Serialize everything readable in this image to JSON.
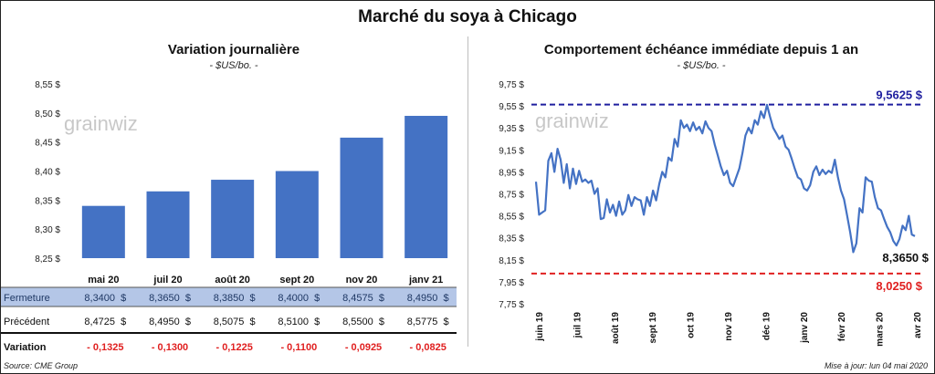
{
  "main_title": "Marché du soya à Chicago",
  "left": {
    "title": "Variation journalière",
    "unit": "- $US/bo. -",
    "watermark": "grainwiz",
    "row_labels": [
      "Fermeture",
      "Précédent",
      "Variation"
    ]
  },
  "right": {
    "title": "Comportement échéance immédiate depuis 1 an",
    "unit": "- $US/bo. -",
    "watermark": "grainwiz",
    "high_label": "9,5625 $",
    "last_label": "8,3650 $",
    "low_label": "8,0250 $"
  },
  "footer": {
    "source": "Source: CME Group",
    "updated": "Mise à jour: lun 04 mai 2020"
  },
  "colors": {
    "bar": "#4472C4",
    "line": "#4472C4",
    "high": "#1F1F9F",
    "low": "#E02020",
    "negative": "#E02020",
    "row_highlight": "#B4C6E7"
  },
  "chart_data": [
    {
      "type": "bar",
      "categories": [
        "mai 20",
        "juil 20",
        "août 20",
        "sept 20",
        "nov 20",
        "janv 21"
      ],
      "values": [
        8.34,
        8.365,
        8.385,
        8.4,
        8.4575,
        8.495
      ],
      "previous": [
        8.4725,
        8.495,
        8.5075,
        8.51,
        8.55,
        8.5775
      ],
      "change": [
        -0.1325,
        -0.13,
        -0.1225,
        -0.11,
        -0.0925,
        -0.0825
      ],
      "display": {
        "fermeture": [
          "8,3400  $",
          "8,3650  $",
          "8,3850  $",
          "8,4000  $",
          "8,4575  $",
          "8,4950  $"
        ],
        "precedent": [
          "8,4725  $",
          "8,4950  $",
          "8,5075  $",
          "8,5100  $",
          "8,5500  $",
          "8,5775  $"
        ],
        "variation": [
          "- 0,1325",
          "- 0,1300",
          "- 0,1225",
          "- 0,1100",
          "- 0,0925",
          "- 0,0825"
        ]
      },
      "ylim": [
        8.25,
        8.55
      ],
      "yticks": [
        8.25,
        8.3,
        8.35,
        8.4,
        8.45,
        8.5,
        8.55
      ],
      "ytick_labels": [
        "8,25 $",
        "8,30 $",
        "8,35 $",
        "8,40 $",
        "8,45 $",
        "8,50 $",
        "8,55 $"
      ],
      "grid": false
    },
    {
      "type": "line",
      "x_labels": [
        "juin 19",
        "juil 19",
        "août 19",
        "sept 19",
        "oct 19",
        "nov 19",
        "déc 19",
        "janv 20",
        "févr 20",
        "mars 20",
        "avr 20"
      ],
      "values": [
        8.86,
        8.56,
        8.58,
        8.6,
        9.05,
        9.12,
        8.95,
        9.16,
        9.06,
        8.85,
        9.02,
        8.8,
        8.98,
        8.84,
        8.96,
        8.86,
        8.88,
        8.85,
        8.87,
        8.75,
        8.8,
        8.52,
        8.53,
        8.7,
        8.58,
        8.65,
        8.55,
        8.68,
        8.56,
        8.6,
        8.74,
        8.64,
        8.72,
        8.7,
        8.69,
        8.56,
        8.72,
        8.64,
        8.78,
        8.69,
        8.84,
        8.95,
        8.9,
        9.08,
        9.05,
        9.25,
        9.18,
        9.42,
        9.35,
        9.38,
        9.32,
        9.4,
        9.33,
        9.36,
        9.3,
        9.41,
        9.35,
        9.32,
        9.2,
        9.1,
        9.0,
        8.92,
        8.96,
        8.85,
        8.82,
        8.9,
        8.98,
        9.12,
        9.28,
        9.35,
        9.3,
        9.42,
        9.38,
        9.5,
        9.44,
        9.56,
        9.45,
        9.35,
        9.3,
        9.25,
        9.28,
        9.18,
        9.15,
        9.07,
        8.98,
        8.9,
        8.88,
        8.8,
        8.78,
        8.83,
        8.95,
        9.0,
        8.92,
        8.97,
        8.93,
        8.96,
        8.94,
        9.06,
        8.9,
        8.78,
        8.7,
        8.55,
        8.4,
        8.22,
        8.3,
        8.62,
        8.58,
        8.9,
        8.87,
        8.86,
        8.72,
        8.62,
        8.6,
        8.52,
        8.45,
        8.4,
        8.32,
        8.28,
        8.34,
        8.46,
        8.42,
        8.55,
        8.38,
        8.365
      ],
      "ylim": [
        7.75,
        9.75
      ],
      "yticks": [
        7.75,
        7.95,
        8.15,
        8.35,
        8.55,
        8.75,
        8.95,
        9.15,
        9.35,
        9.55,
        9.75
      ],
      "ytick_labels": [
        "7,75 $",
        "7,95 $",
        "8,15 $",
        "8,35 $",
        "8,55 $",
        "8,75 $",
        "8,95 $",
        "9,15 $",
        "9,35 $",
        "9,55 $",
        "9,75 $"
      ],
      "high": 9.5625,
      "low": 8.025,
      "last": 8.365,
      "grid": false
    }
  ]
}
